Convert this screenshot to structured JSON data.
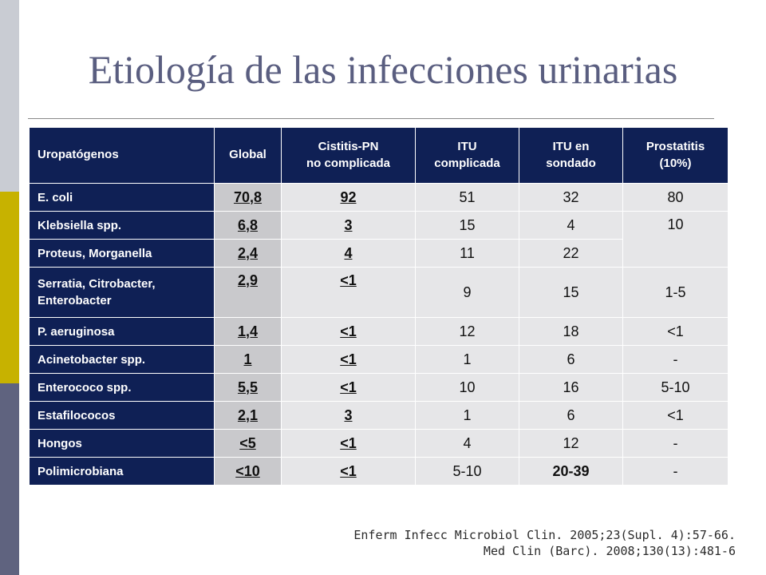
{
  "title": "Etiología de las infecciones urinarias",
  "table": {
    "headers": {
      "uropatogenos": "Uropatógenos",
      "global": "Global",
      "cistitis_1": "Cistitis-PN",
      "cistitis_2": "no complicada",
      "itu_comp_1": "ITU",
      "itu_comp_2": "complicada",
      "itu_sond_1": "ITU en",
      "itu_sond_2": "sondado",
      "prost_1": "Prostatitis",
      "prost_2": "(10%)"
    },
    "rows": [
      {
        "pathogen": "E. coli",
        "global": "70,8",
        "cistitis": "92",
        "itu_complicada": "51",
        "itu_sondado": "32",
        "prostatitis": "80"
      },
      {
        "pathogen": "Klebsiella spp.",
        "global": "6,8",
        "cistitis": "3",
        "itu_complicada": "15",
        "itu_sondado": "4",
        "prostatitis": "10"
      },
      {
        "pathogen": "Proteus, Morganella",
        "global": "2,4",
        "cistitis": "4",
        "itu_complicada": "11",
        "itu_sondado": "22"
      },
      {
        "pathogen_1": "Serratia,  Citrobacter,",
        "pathogen_2": "Enterobacter",
        "global": "2,9",
        "cistitis": "<1",
        "itu_complicada": "9",
        "itu_sondado": "15",
        "prostatitis": "1-5"
      },
      {
        "pathogen": "P. aeruginosa",
        "global": "1,4",
        "cistitis": "<1",
        "itu_complicada": "12",
        "itu_sondado": "18",
        "prostatitis": "<1"
      },
      {
        "pathogen": "Acinetobacter spp.",
        "global": "1",
        "cistitis": "<1",
        "itu_complicada": "1",
        "itu_sondado": "6",
        "prostatitis": "-"
      },
      {
        "pathogen": "Enterococo  spp.",
        "global": "5,5",
        "cistitis": "<1",
        "itu_complicada": "10",
        "itu_sondado": "16",
        "prostatitis": "5-10"
      },
      {
        "pathogen": "Estafilococos",
        "global": "2,1",
        "cistitis": "3",
        "itu_complicada": "1",
        "itu_sondado": "6",
        "prostatitis": "<1"
      },
      {
        "pathogen": "Hongos",
        "global": "<5",
        "cistitis": "<1",
        "itu_complicada": "4",
        "itu_sondado": "12",
        "prostatitis": "-"
      },
      {
        "pathogen": "Polimicrobiana",
        "global": "<10",
        "cistitis": "<1",
        "itu_complicada": "5-10",
        "itu_sondado": "20-39",
        "prostatitis": "-"
      }
    ]
  },
  "references": [
    "Enferm Infecc Microbiol Clin. 2005;23(Supl. 4):57-66.",
    "Med Clin (Barc). 2008;130(13):481-6"
  ],
  "colors": {
    "header_bg": "#0f2055",
    "cell_bg": "#e6e6e8",
    "global_bg": "#c9c9cc",
    "highlight_red": "#cc0000",
    "title": "#5a5e80"
  }
}
